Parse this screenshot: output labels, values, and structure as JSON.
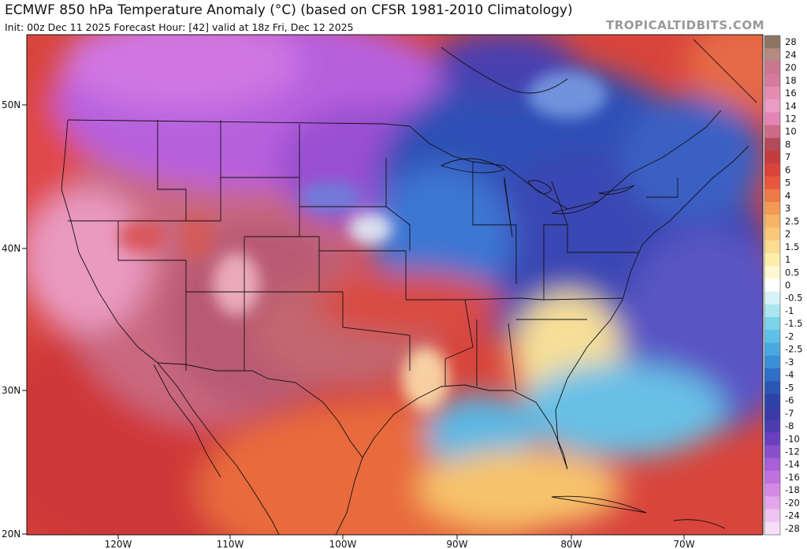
{
  "header": {
    "title": "ECMWF 850 hPa Temperature Anomaly (°C) (based on CFSR 1981-2010 Climatology)",
    "subtitle": "Init: 00z Dec 11 2025   Forecast Hour: [42]   valid at 18z Fri, Dec 12 2025",
    "site": "TROPICALTIDBITS.COM"
  },
  "map": {
    "lat_labels": [
      "50N",
      "40N",
      "30N",
      "20N"
    ],
    "lon_labels": [
      "120W",
      "110W",
      "100W",
      "90W",
      "80W",
      "70W"
    ]
  },
  "colorbar": {
    "labels": [
      "28",
      "24",
      "20",
      "18",
      "16",
      "14",
      "12",
      "10",
      "8",
      "7",
      "6",
      "5",
      "4",
      "3",
      "2.5",
      "2",
      "1.5",
      "1",
      "0.5",
      "0",
      "-0.5",
      "-1",
      "-1.5",
      "-2",
      "-2.5",
      "-3",
      "-4",
      "-5",
      "-6",
      "-7",
      "-8",
      "-10",
      "-12",
      "-14",
      "-16",
      "-18",
      "-20",
      "-24",
      "-28"
    ],
    "colors": [
      "#8c7563",
      "#b58a80",
      "#c9778e",
      "#d7799c",
      "#e68bb2",
      "#ec9cc5",
      "#e585b7",
      "#cf6b88",
      "#b44a59",
      "#c43c3e",
      "#d8433c",
      "#e8573e",
      "#ee7a48",
      "#f39a54",
      "#f7b465",
      "#f9c87a",
      "#fcdc90",
      "#fdeda9",
      "#fff8d0",
      "#ffffff",
      "#d8f3f8",
      "#a9e6f0",
      "#7cd3ea",
      "#5ec0e6",
      "#4aa8e0",
      "#3a8fd8",
      "#2f6fc8",
      "#2b56b8",
      "#2e42a8",
      "#3a3aa8",
      "#4c3cb0",
      "#6a40c0",
      "#8a4ecc",
      "#a85fd8",
      "#c071e0",
      "#d58ae6",
      "#e3a6ec",
      "#eec4f1",
      "#f6dff6"
    ]
  }
}
